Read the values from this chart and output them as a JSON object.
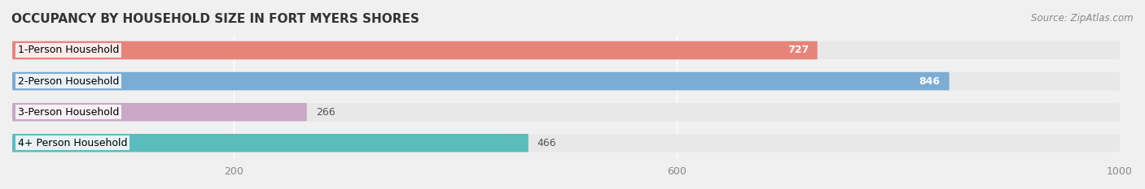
{
  "title": "OCCUPANCY BY HOUSEHOLD SIZE IN FORT MYERS SHORES",
  "source": "Source: ZipAtlas.com",
  "categories": [
    "1-Person Household",
    "2-Person Household",
    "3-Person Household",
    "4+ Person Household"
  ],
  "values": [
    727,
    846,
    266,
    466
  ],
  "bar_colors": [
    "#e8837a",
    "#7bacd4",
    "#c9a8c8",
    "#5bbcbe"
  ],
  "label_colors": [
    "white",
    "white",
    "black",
    "black"
  ],
  "xlim": [
    0,
    1000
  ],
  "xticks": [
    200,
    600,
    1000
  ],
  "bar_height": 0.55,
  "background_color": "#f0f0f0",
  "bar_bg_color": "#e8e8e8",
  "title_fontsize": 11,
  "source_fontsize": 8.5,
  "label_fontsize": 9,
  "ylabel_fontsize": 9
}
